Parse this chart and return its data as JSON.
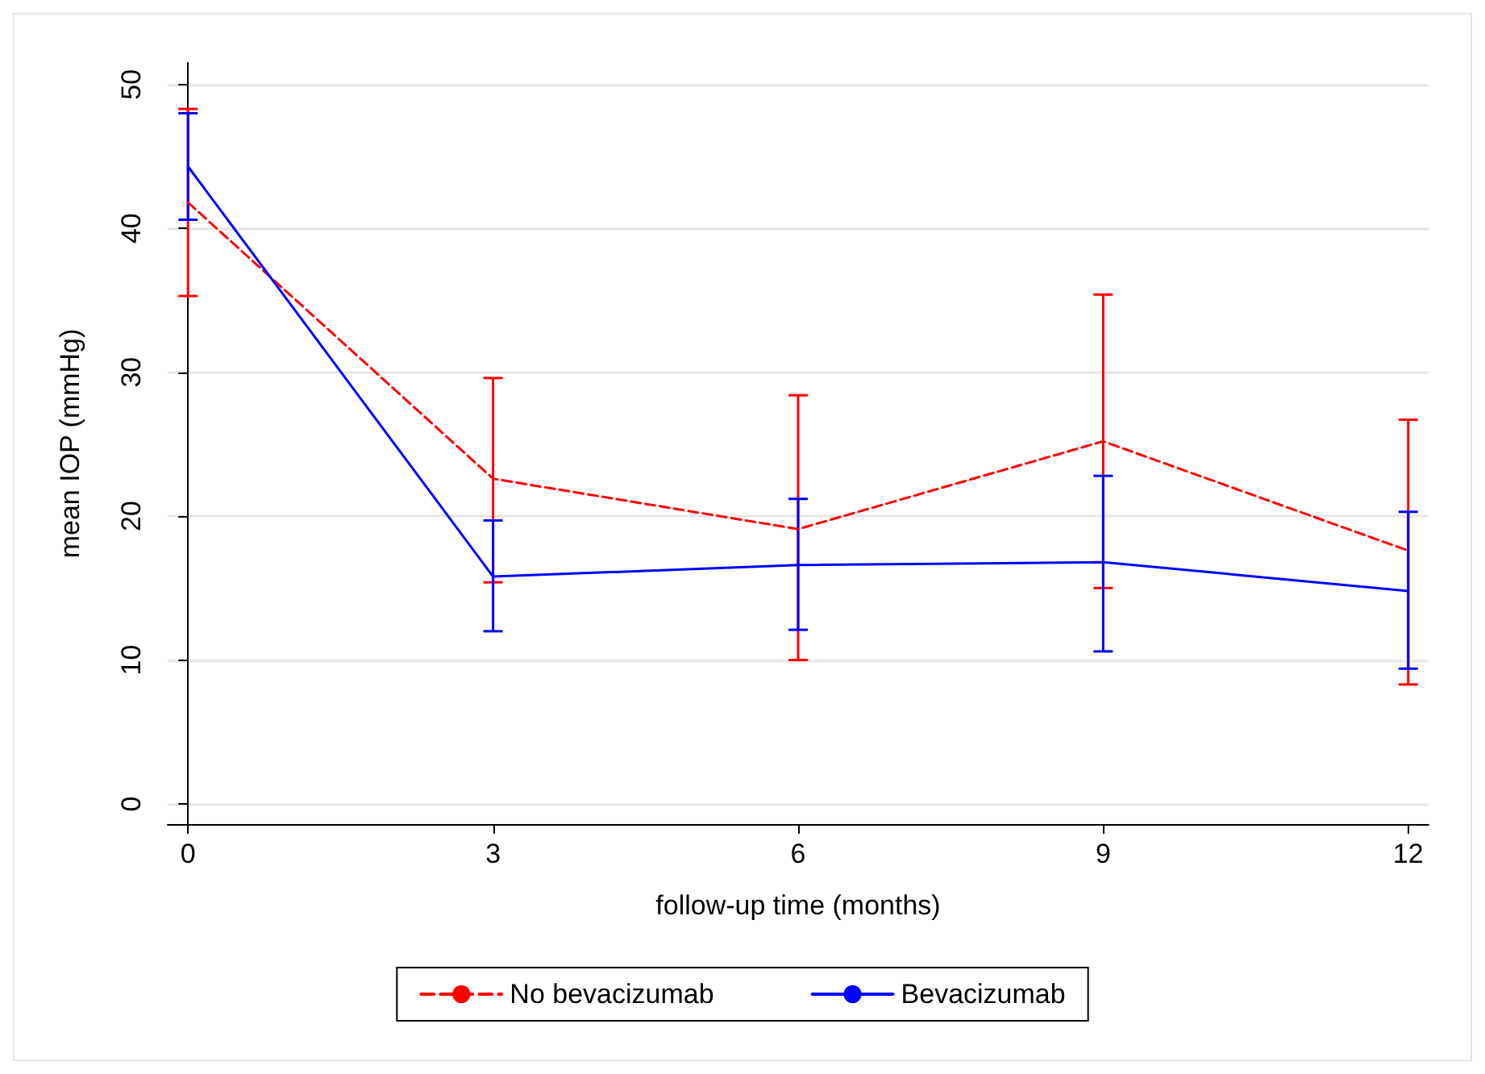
{
  "chart_data": {
    "type": "line",
    "xlabel": "follow-up time (months)",
    "ylabel": "mean IOP (mmHg)",
    "x": [
      0,
      3,
      6,
      9,
      12
    ],
    "xlim": [
      -0.2,
      12.2
    ],
    "xticks": [
      0,
      3,
      6,
      9,
      12
    ],
    "ylim": [
      -1.4,
      51.5
    ],
    "yticks": [
      0,
      10,
      20,
      30,
      40,
      50
    ],
    "grid": "y",
    "legend": "bottom",
    "marker": "none",
    "series": [
      {
        "name": "No bevacizumab",
        "color": "#ff0000",
        "line_style": "dashed",
        "values": [
          41.8,
          22.6,
          19.1,
          25.2,
          17.6
        ],
        "errors": [
          [
            35.3,
            48.3
          ],
          [
            15.4,
            29.6
          ],
          [
            10,
            28.4
          ],
          [
            15,
            35.4
          ],
          [
            8.3,
            26.7
          ]
        ]
      },
      {
        "name": "Bevacizumab",
        "color": "#0000ff",
        "line_style": "solid",
        "values": [
          44.3,
          15.8,
          16.6,
          16.8,
          14.8
        ],
        "errors": [
          [
            40.6,
            48
          ],
          [
            12,
            19.7
          ],
          [
            12.1,
            21.2
          ],
          [
            10.6,
            22.8
          ],
          [
            9.4,
            20.3
          ]
        ]
      }
    ]
  }
}
